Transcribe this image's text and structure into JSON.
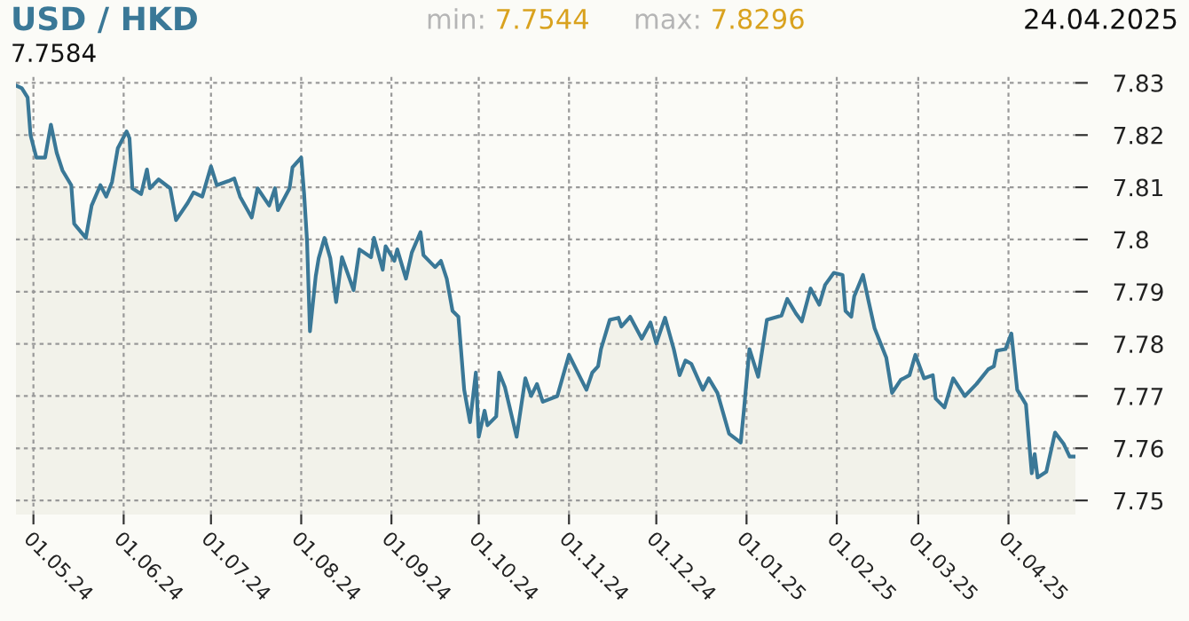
{
  "chart_data": {
    "type": "area",
    "title": "USD / HKD",
    "annotations": [
      "min: 7.7544",
      "max: 7.8296",
      "24.04.2025",
      "7.7584"
    ],
    "series": [
      {
        "color": "#3a7897",
        "x": [
          "2024-04-25",
          "2024-04-27",
          "2024-04-29",
          "2024-04-30",
          "2024-05-02",
          "2024-05-05",
          "2024-05-07",
          "2024-05-09",
          "2024-05-11",
          "2024-05-14",
          "2024-05-15",
          "2024-05-19",
          "2024-05-21",
          "2024-05-24",
          "2024-05-26",
          "2024-05-28",
          "2024-05-30",
          "2024-06-02",
          "2024-06-03",
          "2024-06-04",
          "2024-06-07",
          "2024-06-09",
          "2024-06-10",
          "2024-06-13",
          "2024-06-17",
          "2024-06-19",
          "2024-06-23",
          "2024-06-25",
          "2024-06-28",
          "2024-07-01",
          "2024-07-03",
          "2024-07-07",
          "2024-07-09",
          "2024-07-11",
          "2024-07-15",
          "2024-07-17",
          "2024-07-21",
          "2024-07-23",
          "2024-07-24",
          "2024-07-28",
          "2024-07-29",
          "2024-08-01",
          "2024-08-02",
          "2024-08-03",
          "2024-08-04",
          "2024-08-06",
          "2024-08-07",
          "2024-08-09",
          "2024-08-11",
          "2024-08-13",
          "2024-08-15",
          "2024-08-19",
          "2024-08-21",
          "2024-08-25",
          "2024-08-26",
          "2024-08-29",
          "2024-08-30",
          "2024-09-02",
          "2024-09-03",
          "2024-09-06",
          "2024-09-08",
          "2024-09-11",
          "2024-09-12",
          "2024-09-16",
          "2024-09-18",
          "2024-09-20",
          "2024-09-22",
          "2024-09-24",
          "2024-09-26",
          "2024-09-28",
          "2024-09-30",
          "2024-10-01",
          "2024-10-03",
          "2024-10-04",
          "2024-10-07",
          "2024-10-08",
          "2024-10-10",
          "2024-10-14",
          "2024-10-17",
          "2024-10-19",
          "2024-10-21",
          "2024-10-23",
          "2024-10-28",
          "2024-11-01",
          "2024-11-05",
          "2024-11-07",
          "2024-11-09",
          "2024-11-11",
          "2024-11-12",
          "2024-11-15",
          "2024-11-18",
          "2024-11-19",
          "2024-11-22",
          "2024-11-26",
          "2024-11-29",
          "2024-12-01",
          "2024-12-04",
          "2024-12-07",
          "2024-12-09",
          "2024-12-11",
          "2024-12-13",
          "2024-12-17",
          "2024-12-19",
          "2024-12-22",
          "2024-12-26",
          "2024-12-30",
          "2024-12-31",
          "2025-01-02",
          "2025-01-05",
          "2025-01-08",
          "2025-01-13",
          "2025-01-15",
          "2025-01-18",
          "2025-01-20",
          "2025-01-23",
          "2025-01-26",
          "2025-01-28",
          "2025-01-31",
          "2025-02-03",
          "2025-02-04",
          "2025-02-06",
          "2025-02-07",
          "2025-02-10",
          "2025-02-12",
          "2025-02-14",
          "2025-02-18",
          "2025-02-20",
          "2025-02-23",
          "2025-02-26",
          "2025-02-28",
          "2025-03-03",
          "2025-03-06",
          "2025-03-07",
          "2025-03-10",
          "2025-03-13",
          "2025-03-17",
          "2025-03-21",
          "2025-03-25",
          "2025-03-27",
          "2025-03-28",
          "2025-03-31",
          "2025-04-02",
          "2025-04-04",
          "2025-04-07",
          "2025-04-08",
          "2025-04-09",
          "2025-04-10",
          "2025-04-11",
          "2025-04-14",
          "2025-04-17",
          "2025-04-20",
          "2025-04-22",
          "2025-04-24"
        ],
        "values": [
          7.8295,
          7.829,
          7.8272,
          7.82,
          7.8157,
          7.8157,
          7.822,
          7.8166,
          7.8132,
          7.8104,
          7.803,
          7.8003,
          7.8065,
          7.8104,
          7.8082,
          7.811,
          7.8175,
          7.8207,
          7.8194,
          7.8098,
          7.8087,
          7.8134,
          7.8098,
          7.8115,
          7.8098,
          7.8037,
          7.807,
          7.809,
          7.8082,
          7.814,
          7.8104,
          7.8112,
          7.8117,
          7.8082,
          7.8042,
          7.8098,
          7.8065,
          7.8098,
          7.8056,
          7.8098,
          7.8138,
          7.8157,
          7.8087,
          7.7998,
          7.7824,
          7.793,
          7.7964,
          7.8003,
          7.7964,
          7.788,
          7.7966,
          7.7903,
          7.7981,
          7.7966,
          7.8003,
          7.7942,
          7.7987,
          7.7959,
          7.7981,
          7.7925,
          7.7975,
          7.8014,
          7.797,
          7.7947,
          7.7959,
          7.7925,
          7.7863,
          7.7852,
          7.7712,
          7.765,
          7.7745,
          7.7622,
          7.7672,
          7.7644,
          7.7661,
          7.7745,
          7.7717,
          7.7622,
          7.7734,
          7.77,
          7.7723,
          7.7689,
          7.77,
          7.7779,
          7.7734,
          7.7712,
          7.7745,
          7.7757,
          7.779,
          7.7846,
          7.785,
          7.7833,
          7.7852,
          7.781,
          7.7841,
          7.7801,
          7.785,
          7.779,
          7.774,
          7.7768,
          7.7762,
          7.7712,
          7.7734,
          7.7706,
          7.7628,
          7.7611,
          7.7667,
          7.779,
          7.7737,
          7.7846,
          7.7854,
          7.7886,
          7.7858,
          7.7843,
          7.7906,
          7.7875,
          7.7913,
          7.7936,
          7.7932,
          7.7863,
          7.7852,
          7.7891,
          7.7932,
          7.788,
          7.783,
          7.7774,
          7.7706,
          7.7731,
          7.774,
          7.7779,
          7.7734,
          7.774,
          7.7695,
          7.7678,
          7.7734,
          7.77,
          7.7723,
          7.7751,
          7.7757,
          7.7787,
          7.779,
          7.782,
          7.7712,
          7.7684,
          7.7617,
          7.7552,
          7.7589,
          7.7544,
          7.7555,
          7.763,
          7.7608,
          7.7584,
          7.7584
        ]
      }
    ],
    "xlim": [
      "2024-04-25",
      "2025-04-24"
    ],
    "xticks": [
      {
        "value": "2024-05-01",
        "label": "01.05.24"
      },
      {
        "value": "2024-06-01",
        "label": "01.06.24"
      },
      {
        "value": "2024-07-01",
        "label": "01.07.24"
      },
      {
        "value": "2024-08-01",
        "label": "01.08.24"
      },
      {
        "value": "2024-09-01",
        "label": "01.09.24"
      },
      {
        "value": "2024-10-01",
        "label": "01.10.24"
      },
      {
        "value": "2024-11-01",
        "label": "01.11.24"
      },
      {
        "value": "2024-12-01",
        "label": "01.12.24"
      },
      {
        "value": "2025-01-01",
        "label": "01.01.25"
      },
      {
        "value": "2025-02-01",
        "label": "01.02.25"
      },
      {
        "value": "2025-03-01",
        "label": "01.03.25"
      },
      {
        "value": "2025-04-01",
        "label": "01.04.25"
      }
    ],
    "ylim": [
      7.7473,
      7.8316
    ],
    "yticks": [
      7.75,
      7.76,
      7.77,
      7.78,
      7.79,
      {
        "value": 7.8,
        "label": "7.8"
      },
      7.81,
      7.82,
      7.83
    ],
    "grid": true,
    "line_style": "solid",
    "marker": "none"
  }
}
